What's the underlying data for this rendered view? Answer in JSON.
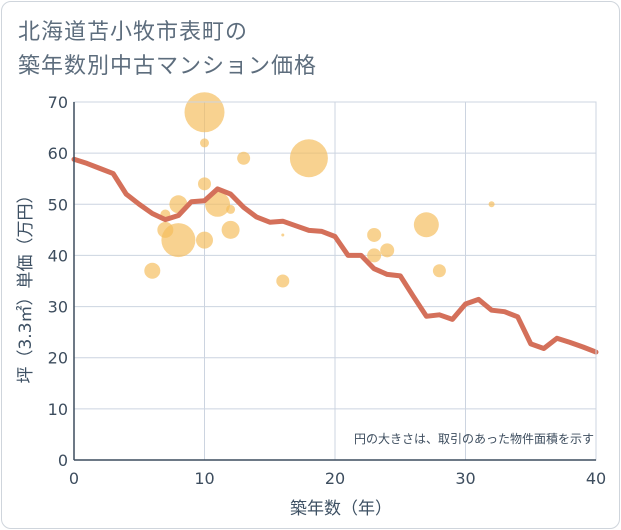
{
  "chart_data": {
    "type": "scatter",
    "title_line1": "北海道苫小牧市表町の",
    "title_line2": "築年数別中古マンション価格",
    "xlabel": "築年数（年）",
    "ylabel": "坪（3.3㎡）単価（万円）",
    "note": "円の大きさは、取引のあった物件面積を示す",
    "xlim": [
      0,
      40
    ],
    "ylim": [
      0,
      70
    ],
    "x_ticks": [
      0,
      10,
      20,
      30,
      40
    ],
    "y_ticks": [
      0,
      10,
      20,
      30,
      40,
      50,
      60,
      70
    ],
    "colors": {
      "bubble": "#f5bd5c",
      "line": "#d4705a",
      "grid": "#ccd4e0"
    },
    "bubbles": [
      {
        "x": 6,
        "y": 37,
        "size": 16
      },
      {
        "x": 7,
        "y": 48,
        "size": 10
      },
      {
        "x": 7,
        "y": 45,
        "size": 16
      },
      {
        "x": 8,
        "y": 50,
        "size": 18
      },
      {
        "x": 8,
        "y": 43,
        "size": 34
      },
      {
        "x": 10,
        "y": 68,
        "size": 40
      },
      {
        "x": 10,
        "y": 62,
        "size": 9
      },
      {
        "x": 10,
        "y": 54,
        "size": 13
      },
      {
        "x": 10,
        "y": 43,
        "size": 17
      },
      {
        "x": 11,
        "y": 50,
        "size": 25
      },
      {
        "x": 12,
        "y": 49,
        "size": 9
      },
      {
        "x": 12,
        "y": 45,
        "size": 18
      },
      {
        "x": 13,
        "y": 59,
        "size": 13
      },
      {
        "x": 16,
        "y": 44,
        "size": 3
      },
      {
        "x": 16,
        "y": 35,
        "size": 13
      },
      {
        "x": 18,
        "y": 59,
        "size": 38
      },
      {
        "x": 23,
        "y": 44,
        "size": 14
      },
      {
        "x": 23,
        "y": 40,
        "size": 14
      },
      {
        "x": 24,
        "y": 41,
        "size": 14
      },
      {
        "x": 27,
        "y": 46,
        "size": 25
      },
      {
        "x": 28,
        "y": 37,
        "size": 13
      },
      {
        "x": 32,
        "y": 50,
        "size": 6
      }
    ],
    "line": {
      "x": [
        0,
        1,
        2,
        3,
        4,
        5,
        6,
        7,
        8,
        9,
        10,
        11,
        12,
        13,
        14,
        15,
        16,
        17,
        18,
        19,
        20,
        21,
        22,
        23,
        24,
        25,
        26,
        27,
        28,
        29,
        30,
        31,
        32,
        33,
        34,
        35,
        36,
        37,
        38,
        39,
        40
      ],
      "y": [
        58.8,
        58.0,
        57.0,
        56.0,
        52.0,
        50.0,
        48.2,
        47.0,
        47.8,
        50.5,
        50.7,
        53.0,
        52.0,
        49.4,
        47.5,
        46.5,
        46.7,
        45.8,
        44.9,
        44.7,
        43.7,
        40.0,
        40.0,
        37.4,
        36.3,
        36.0,
        32.0,
        28.1,
        28.4,
        27.5,
        30.5,
        31.4,
        29.3,
        29.0,
        28.0,
        22.7,
        21.8,
        23.8,
        23.0,
        22.1,
        21.1
      ]
    }
  }
}
